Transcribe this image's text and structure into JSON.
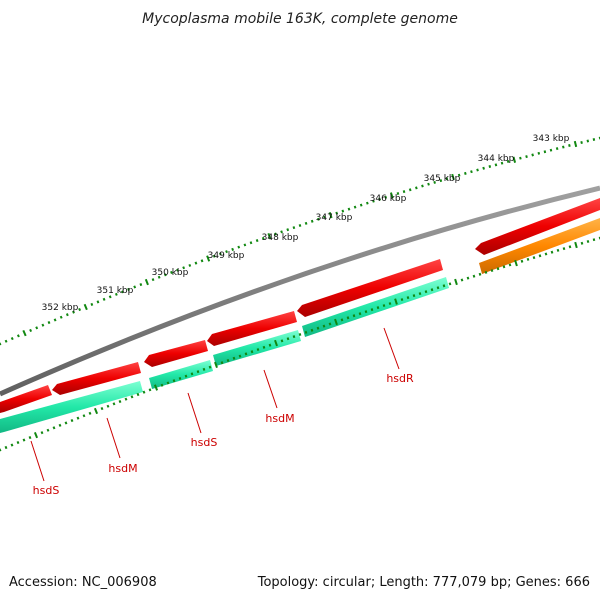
{
  "title": "Mycoplasma mobile 163K, complete genome",
  "footer": {
    "accession": "Accession: NC_006908",
    "summary": "Topology: circular; Length: 777,079 bp; Genes: 666"
  },
  "kbp_labels": [
    "343 kbp",
    "344 kbp",
    "345 kbp",
    "346 kbp",
    "347 kbp",
    "348 kbp",
    "349 kbp",
    "350 kbp",
    "351 kbp",
    "352 kbp"
  ],
  "gene_labels": [
    "hsdR",
    "hsdM",
    "hsdS",
    "hsdM",
    "hsdS"
  ],
  "colors": {
    "backbone": "#777777",
    "forward_red": "#ee0000",
    "reverse_teal": "#22e8a8",
    "orange": "#ff8800",
    "tick": "#118811",
    "label_red": "#cc0000"
  }
}
